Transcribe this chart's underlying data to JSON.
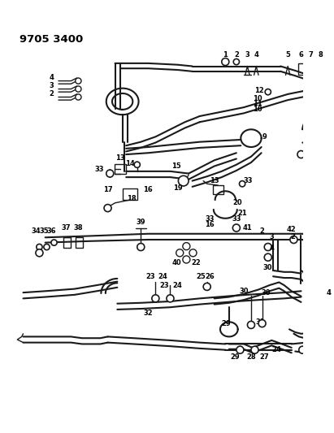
{
  "title": "9705 3400",
  "bg_color": "#ffffff",
  "line_color": "#1a1a1a",
  "lw": 1.0,
  "fig_width": 4.11,
  "fig_height": 5.33,
  "dpi": 100,
  "label_fs": 6.0,
  "label_fw": "bold"
}
